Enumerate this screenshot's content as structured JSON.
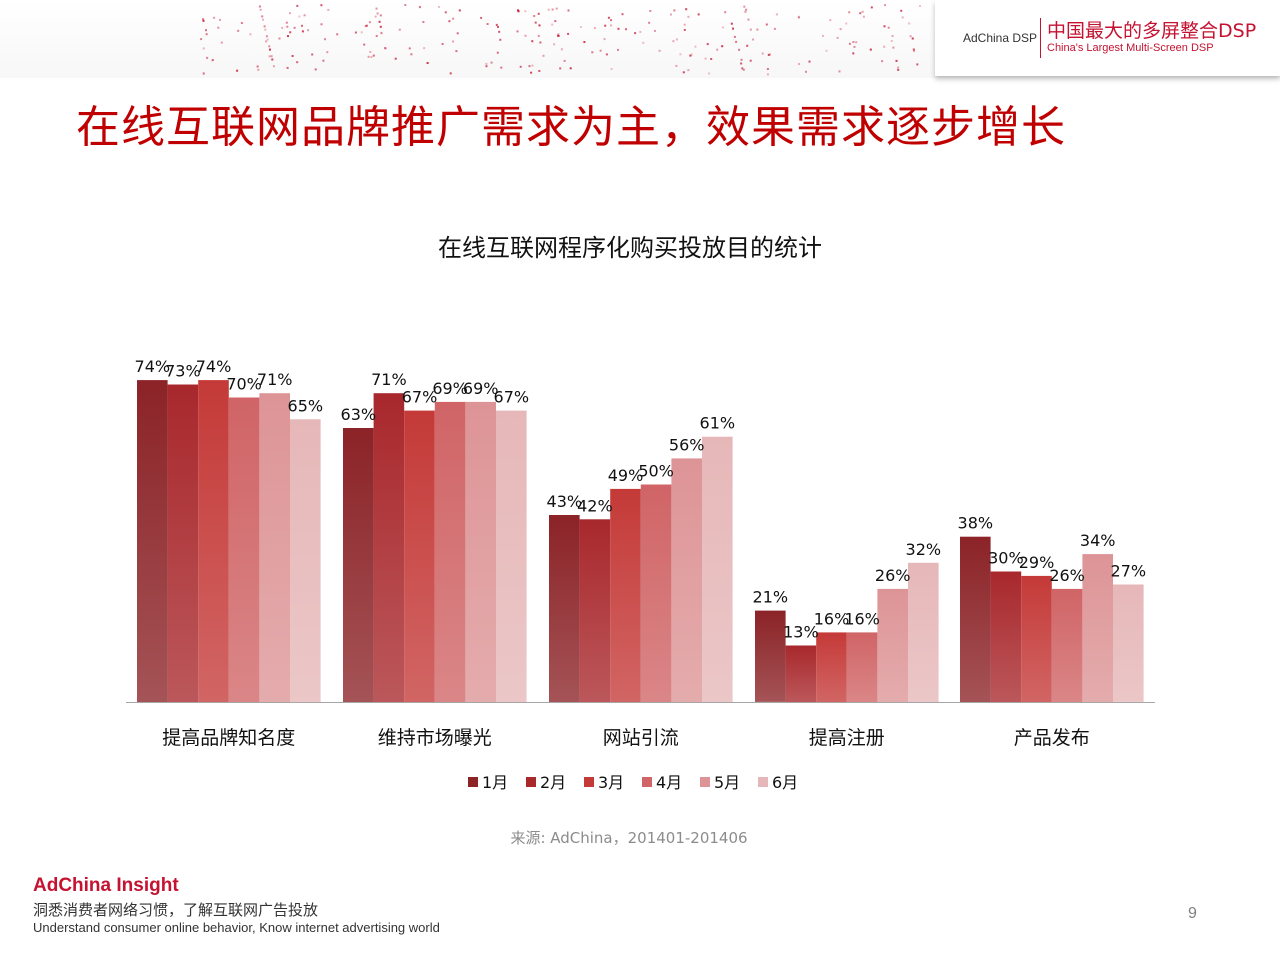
{
  "header": {
    "brand_small": "AdChina DSP",
    "brand_cn": "中国最大的多屏整合DSP",
    "brand_en": "China's Largest Multi-Screen DSP"
  },
  "title": "在线互联网品牌推广需求为主，效果需求逐步增长",
  "source": "来源: AdChina，201401-201406",
  "footer": {
    "brand": "AdChina Insight",
    "cn": "洞悉消费者网络习惯，了解互联网广告投放",
    "en": "Understand consumer online behavior, Know internet advertising world"
  },
  "page_number": "9",
  "colors": {
    "title": "#c00000",
    "brand": "#c41230",
    "series": [
      "#8b2327",
      "#a8282c",
      "#c43a38",
      "#d06466",
      "#dd9496",
      "#e6b7b8"
    ]
  },
  "chart_data": {
    "type": "bar",
    "title": "在线互联网程序化购买投放目的统计",
    "categories": [
      "提高品牌知名度",
      "维持市场曝光",
      "网站引流",
      "提高注册",
      "产品发布"
    ],
    "series": [
      {
        "name": "1月",
        "values": [
          74,
          63,
          43,
          21,
          38
        ]
      },
      {
        "name": "2月",
        "values": [
          73,
          71,
          42,
          13,
          30
        ]
      },
      {
        "name": "3月",
        "values": [
          74,
          67,
          49,
          16,
          29
        ]
      },
      {
        "name": "4月",
        "values": [
          70,
          69,
          50,
          16,
          26
        ]
      },
      {
        "name": "5月",
        "values": [
          71,
          69,
          56,
          26,
          34
        ]
      },
      {
        "name": "6月",
        "values": [
          65,
          67,
          61,
          32,
          27
        ]
      }
    ],
    "value_suffix": "%",
    "legend_position": "bottom",
    "grid": false
  }
}
